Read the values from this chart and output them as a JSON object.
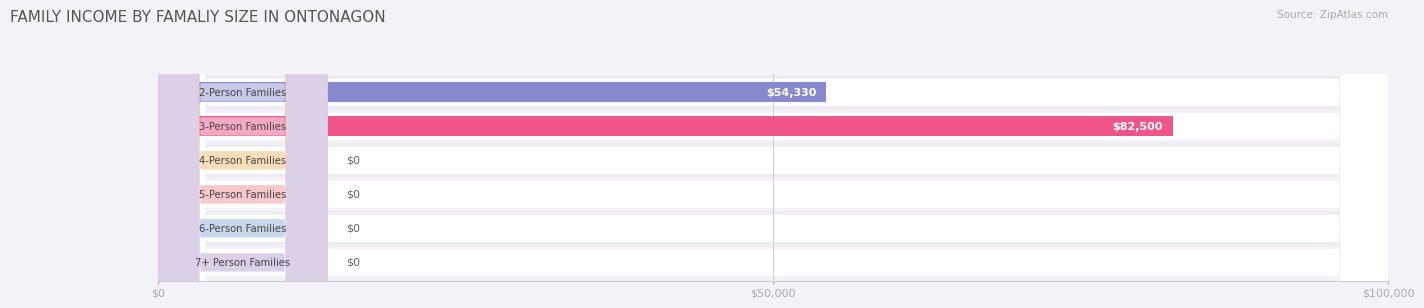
{
  "title": "FAMILY INCOME BY FAMALIY SIZE IN ONTONAGON",
  "source": "Source: ZipAtlas.com",
  "categories": [
    "2-Person Families",
    "3-Person Families",
    "4-Person Families",
    "5-Person Families",
    "6-Person Families",
    "7+ Person Families"
  ],
  "values": [
    54330,
    82500,
    0,
    0,
    0,
    0
  ],
  "bar_colors": [
    "#8888cc",
    "#ee5588",
    "#f5c896",
    "#f0a8a8",
    "#a8c0dc",
    "#c0b0d4"
  ],
  "label_bg_colors": [
    "#c8c8e8",
    "#f4aac4",
    "#f8ddb8",
    "#f8c8c8",
    "#c8d8ec",
    "#dcd0e8"
  ],
  "bar_labels": [
    "$54,330",
    "$82,500",
    "$0",
    "$0",
    "$0",
    "$0"
  ],
  "xlim": [
    0,
    100000
  ],
  "xticks": [
    0,
    50000,
    100000
  ],
  "xtick_labels": [
    "$0",
    "$50,000",
    "$100,000"
  ],
  "background_color": "#f2f2f8",
  "title_fontsize": 11,
  "bar_height": 0.58
}
